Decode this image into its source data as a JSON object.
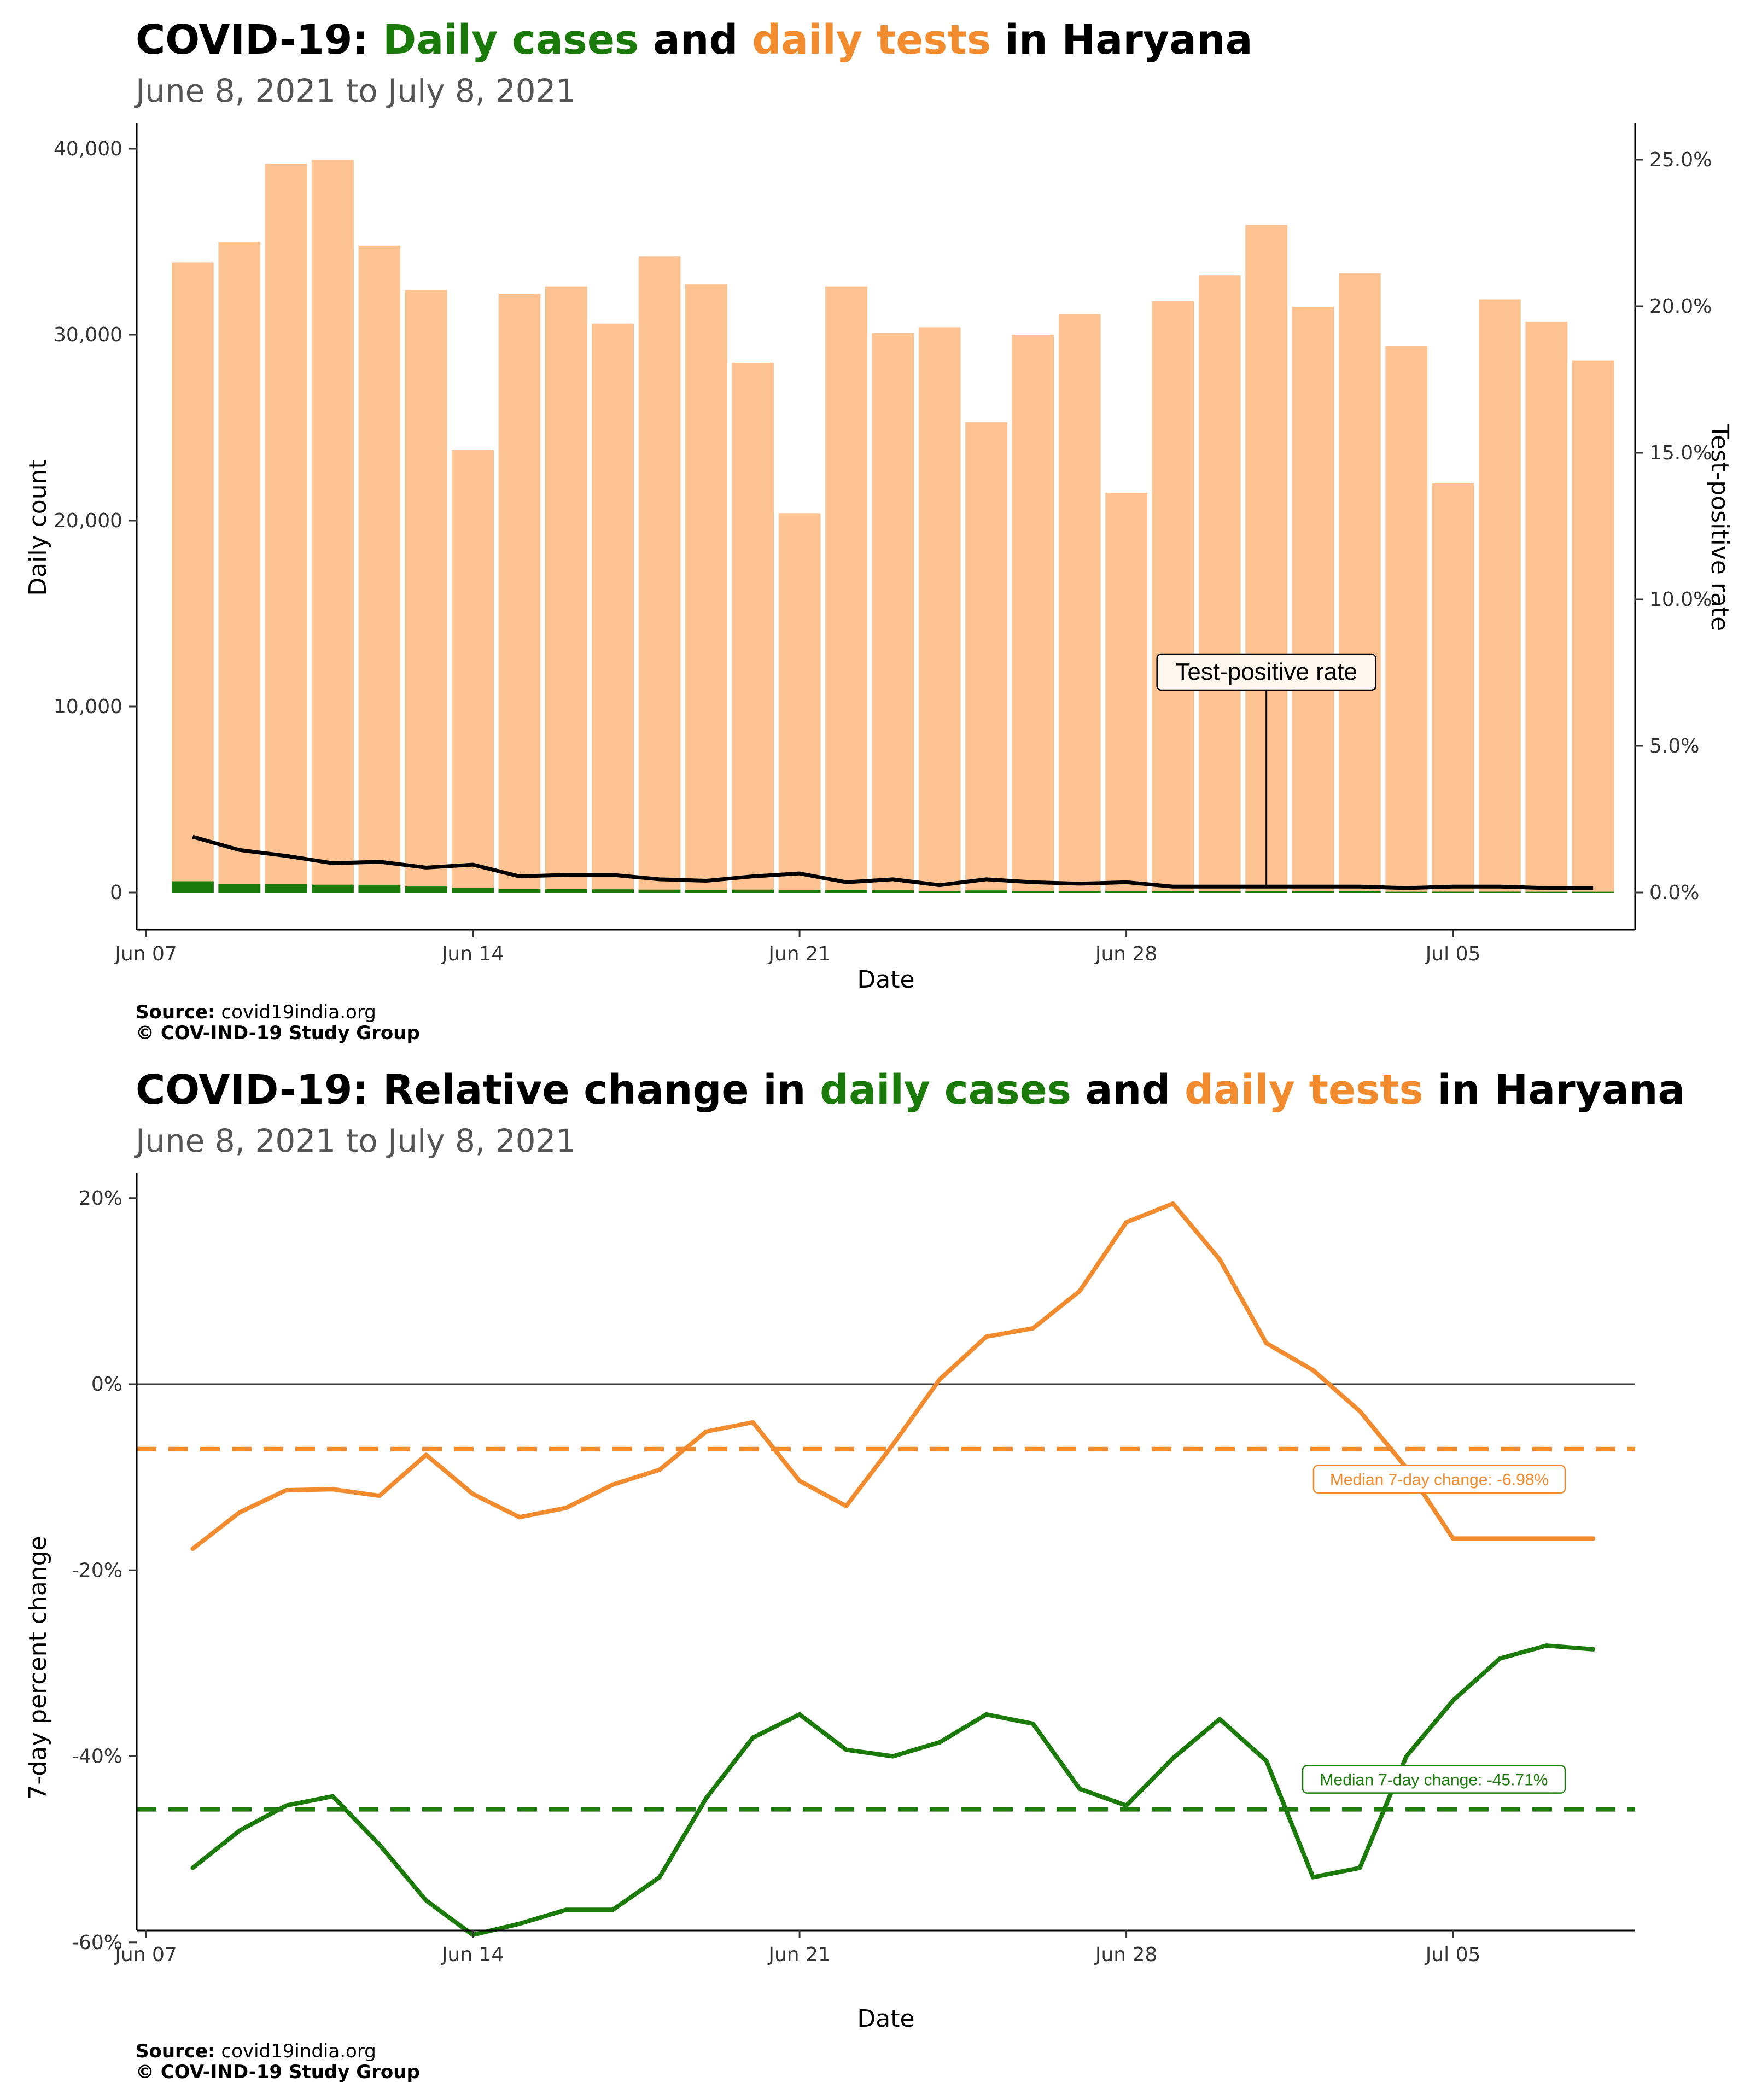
{
  "panel1": {
    "title_prefix": "COVID-19: ",
    "title_cases": "Daily cases",
    "title_and": " and ",
    "title_tests": "daily tests",
    "title_suffix": " in Haryana",
    "subtitle": "June  8, 2021 to July  8, 2021",
    "source_label": "Source:",
    "source_value": " covid19india.org",
    "copyright": "© COV-IND-19 Study Group"
  },
  "panel2": {
    "title_prefix": "COVID-19: Relative change in ",
    "title_cases": "daily cases",
    "title_and": " and ",
    "title_tests": "daily tests",
    "title_suffix": " in Haryana",
    "subtitle": "June  8, 2021 to July  8, 2021",
    "source_label": "Source:",
    "source_value": " covid19india.org",
    "copyright": "© COV-IND-19 Study Group"
  },
  "colors": {
    "cases": "#1a7a0a",
    "tests": "#fcc291",
    "tests_line": "#f28a2e",
    "tpr_line": "#000000"
  },
  "chart_data": [
    {
      "type": "bar",
      "x": [
        "2021-06-08",
        "2021-06-09",
        "2021-06-10",
        "2021-06-11",
        "2021-06-12",
        "2021-06-13",
        "2021-06-14",
        "2021-06-15",
        "2021-06-16",
        "2021-06-17",
        "2021-06-18",
        "2021-06-19",
        "2021-06-20",
        "2021-06-21",
        "2021-06-22",
        "2021-06-23",
        "2021-06-24",
        "2021-06-25",
        "2021-06-26",
        "2021-06-27",
        "2021-06-28",
        "2021-06-29",
        "2021-06-30",
        "2021-07-01",
        "2021-07-02",
        "2021-07-03",
        "2021-07-04",
        "2021-07-05",
        "2021-07-06",
        "2021-07-07",
        "2021-07-08"
      ],
      "series": [
        {
          "name": "daily tests",
          "values": [
            33900,
            35000,
            39200,
            39400,
            34800,
            32400,
            23800,
            32200,
            32600,
            30600,
            34200,
            32700,
            28500,
            20400,
            32600,
            30100,
            30400,
            25300,
            30000,
            31100,
            21500,
            31800,
            33200,
            35900,
            31500,
            33300,
            29400,
            22000,
            31900,
            30700,
            28600
          ]
        },
        {
          "name": "daily cases",
          "values": [
            602,
            470,
            462,
            420,
            380,
            320,
            250,
            190,
            190,
            170,
            155,
            135,
            155,
            140,
            125,
            115,
            80,
            110,
            80,
            80,
            80,
            60,
            70,
            65,
            60,
            60,
            40,
            45,
            45,
            40,
            40
          ]
        },
        {
          "name": "Test-positive rate",
          "values": [
            1.9,
            1.45,
            1.25,
            1.0,
            1.05,
            0.85,
            0.95,
            0.55,
            0.6,
            0.6,
            0.45,
            0.4,
            0.55,
            0.65,
            0.35,
            0.45,
            0.25,
            0.45,
            0.35,
            0.3,
            0.35,
            0.2,
            0.2,
            0.2,
            0.2,
            0.2,
            0.15,
            0.2,
            0.2,
            0.15,
            0.15
          ]
        }
      ],
      "xlabel": "Date",
      "ylabel": "Daily count",
      "y2label": "Test-positive rate",
      "ylim": [
        0,
        41000
      ],
      "y2lim": [
        0,
        26.0
      ],
      "xticks": [
        "Jun 07",
        "Jun 14",
        "Jun 21",
        "Jun 28",
        "Jul 05"
      ],
      "yticks": [
        "0",
        "10,000",
        "20,000",
        "30,000",
        "40,000"
      ],
      "y2ticks": [
        "0.0%",
        "5.0%",
        "10.0%",
        "15.0%",
        "20.0%",
        "25.0%"
      ],
      "annotation": "Test-positive rate",
      "annotation_date": "2021-07-01",
      "grid": false
    },
    {
      "type": "line",
      "x": [
        "2021-06-08",
        "2021-06-09",
        "2021-06-10",
        "2021-06-11",
        "2021-06-12",
        "2021-06-13",
        "2021-06-14",
        "2021-06-15",
        "2021-06-16",
        "2021-06-17",
        "2021-06-18",
        "2021-06-19",
        "2021-06-20",
        "2021-06-21",
        "2021-06-22",
        "2021-06-23",
        "2021-06-24",
        "2021-06-25",
        "2021-06-26",
        "2021-06-27",
        "2021-06-28",
        "2021-06-29",
        "2021-06-30",
        "2021-07-01",
        "2021-07-02",
        "2021-07-03",
        "2021-07-04",
        "2021-07-05",
        "2021-07-06",
        "2021-07-07",
        "2021-07-08"
      ],
      "series": [
        {
          "name": "daily tests",
          "values": [
            -17.7,
            -13.8,
            -11.4,
            -11.3,
            -12.0,
            -7.6,
            -11.8,
            -14.3,
            -13.3,
            -10.8,
            -9.2,
            -5.1,
            -4.1,
            -10.4,
            -13.1,
            -6.5,
            0.5,
            5.1,
            6.0,
            10.0,
            17.4,
            19.4,
            13.4,
            4.4,
            1.5,
            -2.9,
            -9.0,
            -16.6,
            -16.6,
            -16.6,
            -16.6
          ]
        },
        {
          "name": "daily cases",
          "values": [
            -52.0,
            -48.0,
            -45.3,
            -44.3,
            -49.5,
            -55.5,
            -59.2,
            -58.0,
            -56.5,
            -56.5,
            -53.0,
            -44.5,
            -38.0,
            -35.5,
            -39.3,
            -40.0,
            -38.5,
            -35.5,
            -36.5,
            -43.5,
            -45.3,
            -40.2,
            -36.0,
            -40.5,
            -53.0,
            -52.0,
            -40.0,
            -34.0,
            -29.5,
            -28.1,
            -28.5
          ]
        }
      ],
      "median_tests": -6.98,
      "median_cases": -45.71,
      "median_tests_label": "Median 7-day change: -6.98%",
      "median_cases_label": "Median 7-day change: -45.71%",
      "xlabel": "Date",
      "ylabel": "7-day percent change",
      "ylim": [
        -63,
        22
      ],
      "xticks": [
        "Jun 07",
        "Jun 14",
        "Jun 21",
        "Jun 28",
        "Jul 05"
      ],
      "yticks": [
        "-60%",
        "-40%",
        "-20%",
        "0%",
        "20%"
      ],
      "grid": false
    }
  ]
}
